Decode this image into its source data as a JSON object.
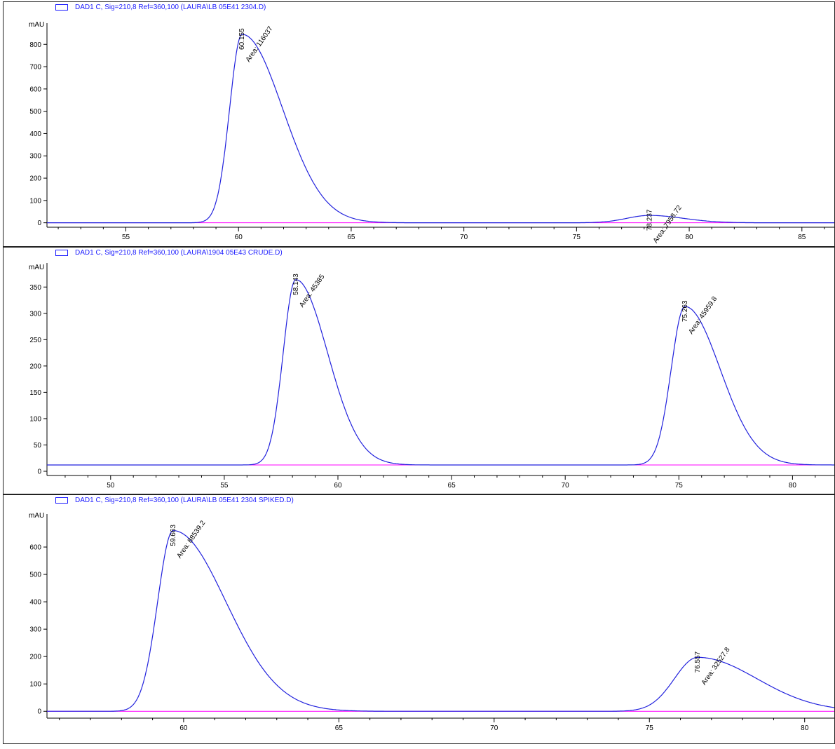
{
  "chart_data": [
    {
      "type": "line",
      "title": "DAD1 C, Sig=210,8 Ref=360,100 (LAURA\\LB 05E41 2304.D)",
      "ylabel": "mAU",
      "xlim": [
        51.5,
        86.5
      ],
      "ylim": [
        -20,
        870
      ],
      "xticks": [
        55,
        60,
        65,
        70,
        75,
        80,
        85
      ],
      "yticks": [
        0,
        100,
        200,
        300,
        400,
        500,
        600,
        700,
        800
      ],
      "baseline": 0,
      "peaks": [
        {
          "rt": 60.155,
          "rt_label": "60.155",
          "area_label": "Area: 116037",
          "height": 845,
          "w_left": 0.55,
          "w_right": 1.8
        },
        {
          "rt": 78.237,
          "rt_label": "78.237",
          "area_label": "Area: 7958.72",
          "height": 33,
          "w_left": 1.0,
          "w_right": 1.5
        }
      ]
    },
    {
      "type": "line",
      "title": "DAD1 C, Sig=210,8 Ref=360,100 (LAURA\\1904 05E43 CRUDE.D)",
      "ylabel": "mAU",
      "xlim": [
        47.2,
        81.9
      ],
      "ylim": [
        -8,
        385
      ],
      "xticks": [
        50,
        55,
        60,
        65,
        70,
        75,
        80
      ],
      "yticks": [
        0,
        50,
        100,
        150,
        200,
        250,
        300,
        350
      ],
      "baseline": 12,
      "peaks": [
        {
          "rt": 58.143,
          "rt_label": "58.143",
          "area_label": "Area: 45385",
          "height": 364,
          "w_left": 0.55,
          "w_right": 1.4
        },
        {
          "rt": 75.263,
          "rt_label": "75.263",
          "area_label": "Area: 45959.8",
          "height": 313,
          "w_left": 0.6,
          "w_right": 1.55
        }
      ]
    },
    {
      "type": "line",
      "title": "DAD1 C, Sig=210,8 Ref=360,100 (LAURA\\LB 05E41 2304 SPIKED.D)",
      "ylabel": "mAU",
      "xlim": [
        55.6,
        81.0
      ],
      "ylim": [
        -25,
        700
      ],
      "xticks": [
        60,
        65,
        70,
        75,
        80
      ],
      "yticks": [
        0,
        100,
        200,
        300,
        400,
        500,
        600
      ],
      "baseline": 0,
      "peaks": [
        {
          "rt": 59.663,
          "rt_label": "59.663",
          "area_label": "Area: 88539.2",
          "height": 660,
          "w_left": 0.5,
          "w_right": 1.7
        },
        {
          "rt": 76.557,
          "rt_label": "76.557",
          "area_label": "Area: 32527.8",
          "height": 197,
          "w_left": 0.75,
          "w_right": 1.9
        }
      ]
    }
  ],
  "colors": {
    "signal": "#2222dd",
    "baseline": "#ff00ff",
    "header": "#1a1aff",
    "axis": "#000000"
  }
}
